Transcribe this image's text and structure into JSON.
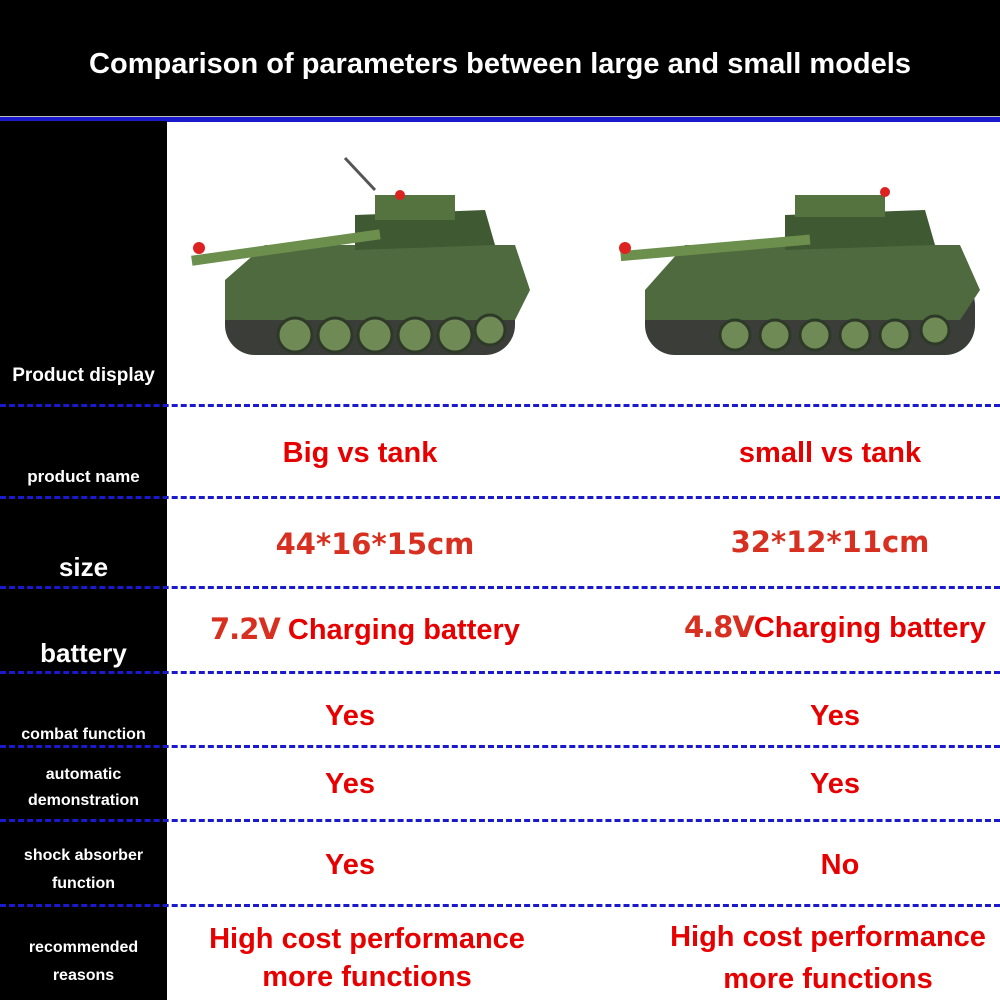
{
  "title": "Comparison of parameters between large and small models",
  "colors": {
    "accent_blue": "#1a1acc",
    "value_red": "#e60000",
    "label_bg": "#000000"
  },
  "rows": [
    {
      "label": "Product display",
      "big": "",
      "small": ""
    },
    {
      "label": "product name",
      "big": "Big vs tank",
      "small": "small vs tank"
    },
    {
      "label": "size",
      "big": "44*16*15cm",
      "small": "32*12*11cm"
    },
    {
      "label": "battery",
      "big_voltage": "7.2V",
      "big": "Charging battery",
      "small_voltage": "4.8V",
      "small": "Charging battery"
    },
    {
      "label": "combat function",
      "big": "Yes",
      "small": "Yes"
    },
    {
      "label_line1": "automatic",
      "label_line2": "demonstration",
      "big": "Yes",
      "small": "Yes"
    },
    {
      "label_line1": "shock absorber",
      "label_line2": "function",
      "big": "Yes",
      "small": "No"
    },
    {
      "label_line1": "recommended",
      "label_line2": "reasons",
      "big_line1": "High cost performance",
      "big_line2": "more functions",
      "small_line1": "High cost performance",
      "small_line2": "more functions"
    }
  ],
  "images": {
    "big": "large-tank-photo",
    "small": "small-tank-photo"
  }
}
